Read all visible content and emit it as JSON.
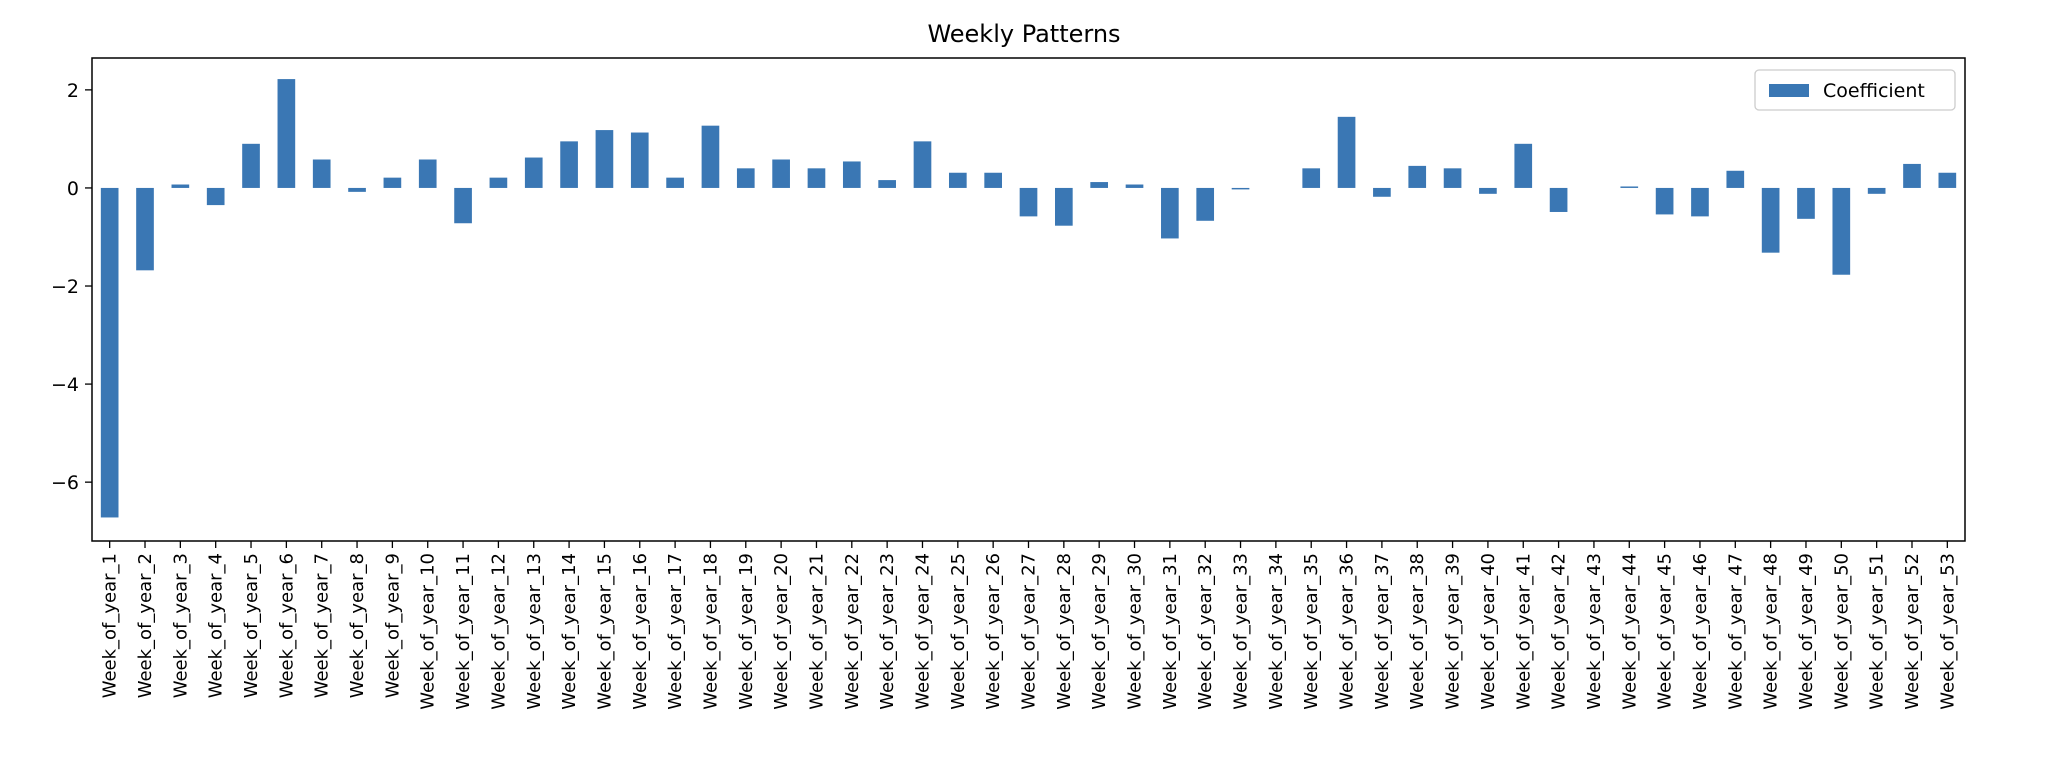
{
  "chart_data": {
    "type": "bar",
    "title": "Weekly Patterns",
    "xlabel": "",
    "ylabel": "",
    "ylim": [
      -7.2,
      2.65
    ],
    "yticks": [
      2,
      0,
      -2,
      -4,
      -6
    ],
    "ytick_labels": [
      "2",
      "0",
      "−2",
      "−4",
      "−6"
    ],
    "grid": false,
    "legend_position": "top-right",
    "bar_color": "#3a77b4",
    "categories": [
      "Week_of_year_1",
      "Week_of_year_2",
      "Week_of_year_3",
      "Week_of_year_4",
      "Week_of_year_5",
      "Week_of_year_6",
      "Week_of_year_7",
      "Week_of_year_8",
      "Week_of_year_9",
      "Week_of_year_10",
      "Week_of_year_11",
      "Week_of_year_12",
      "Week_of_year_13",
      "Week_of_year_14",
      "Week_of_year_15",
      "Week_of_year_16",
      "Week_of_year_17",
      "Week_of_year_18",
      "Week_of_year_19",
      "Week_of_year_20",
      "Week_of_year_21",
      "Week_of_year_22",
      "Week_of_year_23",
      "Week_of_year_24",
      "Week_of_year_25",
      "Week_of_year_26",
      "Week_of_year_27",
      "Week_of_year_28",
      "Week_of_year_29",
      "Week_of_year_30",
      "Week_of_year_31",
      "Week_of_year_32",
      "Week_of_year_33",
      "Week_of_year_34",
      "Week_of_year_35",
      "Week_of_year_36",
      "Week_of_year_37",
      "Week_of_year_38",
      "Week_of_year_39",
      "Week_of_year_40",
      "Week_of_year_41",
      "Week_of_year_42",
      "Week_of_year_43",
      "Week_of_year_44",
      "Week_of_year_45",
      "Week_of_year_46",
      "Week_of_year_47",
      "Week_of_year_48",
      "Week_of_year_49",
      "Week_of_year_50",
      "Week_of_year_51",
      "Week_of_year_52",
      "Week_of_year_53"
    ],
    "series": [
      {
        "name": "Coefficient",
        "values": [
          -6.72,
          -1.68,
          0.07,
          -0.35,
          0.9,
          2.22,
          0.58,
          -0.08,
          0.21,
          0.58,
          -0.72,
          0.21,
          0.62,
          0.95,
          1.18,
          1.13,
          0.21,
          1.27,
          0.4,
          0.58,
          0.4,
          0.54,
          0.16,
          0.95,
          0.31,
          0.31,
          -0.58,
          -0.77,
          0.12,
          0.07,
          -1.03,
          -0.67,
          -0.03,
          0.0,
          0.4,
          1.45,
          -0.18,
          0.45,
          0.4,
          -0.12,
          0.9,
          -0.49,
          0.0,
          0.03,
          -0.54,
          -0.58,
          0.35,
          -1.32,
          -0.63,
          -1.77,
          -0.12,
          0.49,
          0.31
        ]
      }
    ]
  }
}
